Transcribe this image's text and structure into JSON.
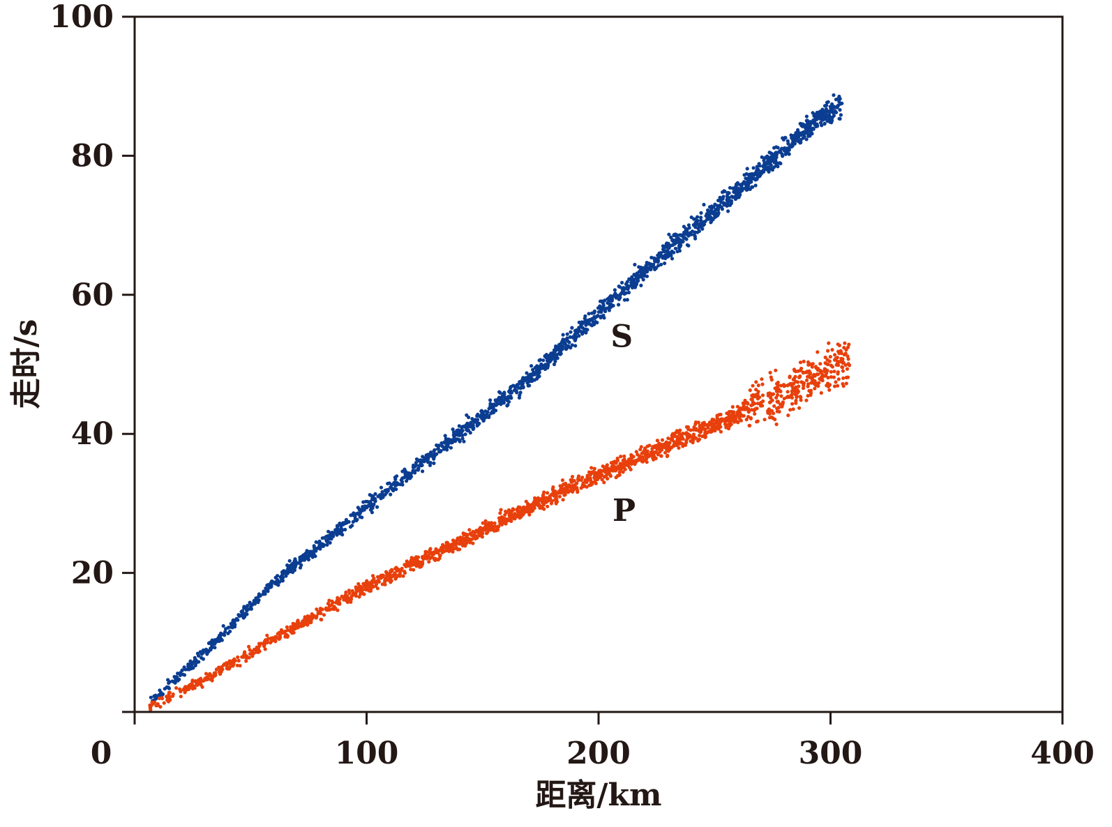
{
  "chart_data": {
    "type": "scatter",
    "xlabel": "距离/km",
    "ylabel": "走时/s",
    "xlim": [
      0,
      400
    ],
    "ylim": [
      0,
      100
    ],
    "x_ticks": [
      "0",
      "100",
      "200",
      "300",
      "400"
    ],
    "y_ticks": [
      "20",
      "40",
      "60",
      "80",
      "100"
    ],
    "grid": false,
    "series": [
      {
        "name": "S",
        "color": "#0b3d91",
        "trend": [
          [
            5,
            1.0
          ],
          [
            30,
            8.5
          ],
          [
            60,
            18.5
          ],
          [
            100,
            29.5
          ],
          [
            140,
            40.0
          ],
          [
            170,
            48.0
          ],
          [
            200,
            57.5
          ],
          [
            230,
            66.5
          ],
          [
            260,
            75.0
          ],
          [
            290,
            84.0
          ],
          [
            305,
            87.5
          ]
        ],
        "x_range": [
          5,
          305
        ],
        "spread": 1.2,
        "n": 1800
      },
      {
        "name": "P",
        "color": "#e8400c",
        "trend": [
          [
            5,
            0.5
          ],
          [
            30,
            4.5
          ],
          [
            60,
            10.5
          ],
          [
            100,
            18.0
          ],
          [
            140,
            24.5
          ],
          [
            180,
            31.0
          ],
          [
            220,
            37.0
          ],
          [
            255,
            42.0
          ],
          [
            280,
            46.0
          ],
          [
            300,
            49.5
          ],
          [
            308,
            50.5
          ]
        ],
        "x_range": [
          5,
          308
        ],
        "spread": 1.1,
        "n": 1800
      }
    ],
    "annotations": [
      {
        "text": "S",
        "x": 210,
        "y": 52.5
      },
      {
        "text": "P",
        "x": 211,
        "y": 27.5
      }
    ]
  }
}
